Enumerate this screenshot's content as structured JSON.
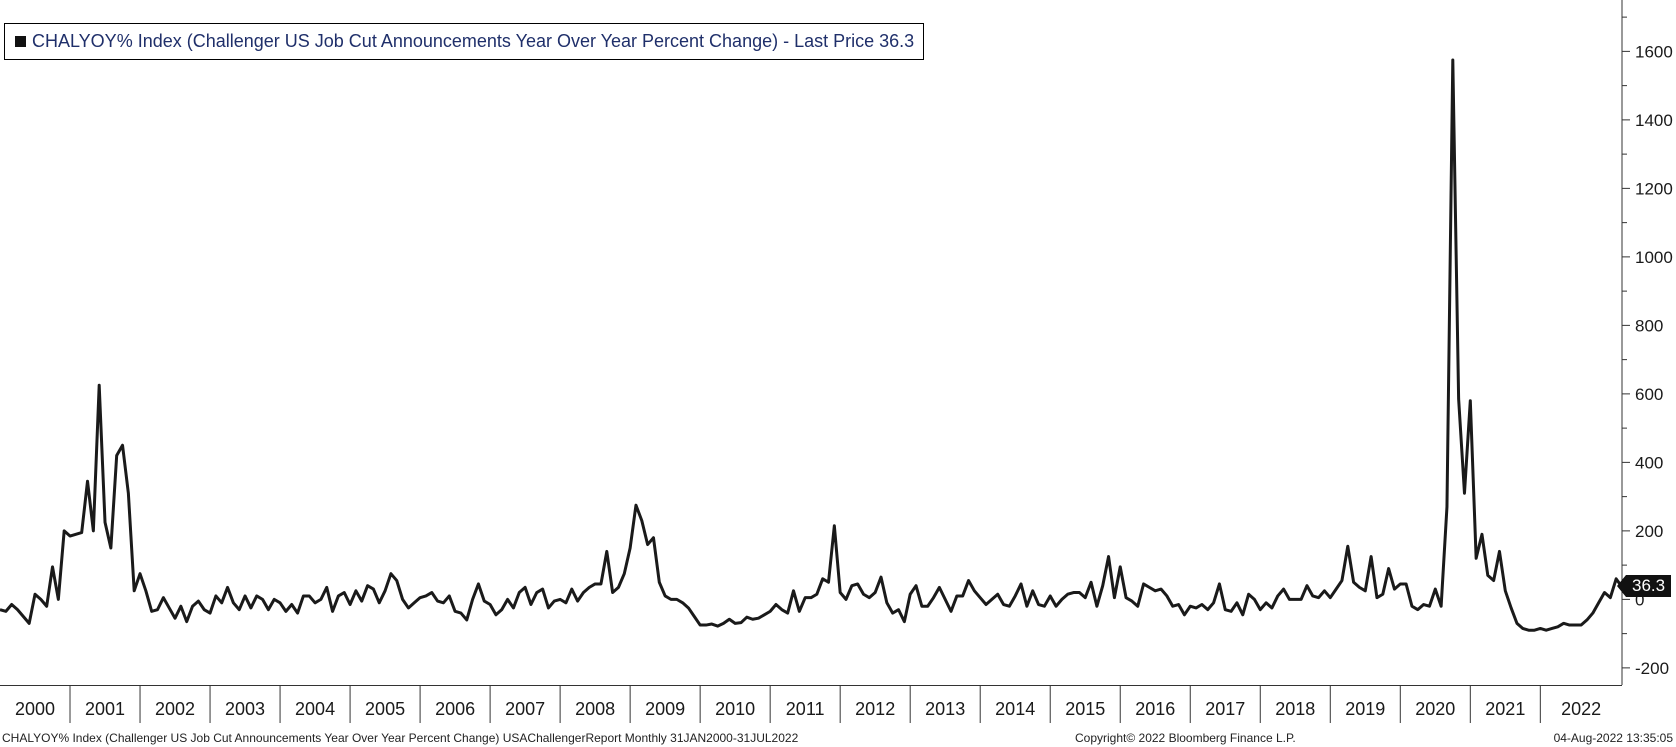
{
  "chart_data": {
    "type": "line",
    "title": "CHALYOY% Index (Challenger US Job Cut Announcements Year Over Year Percent Change) - Last Price 36.3",
    "series": [
      {
        "name": "CHALYOY% Index (Challenger US Job Cut Announcements Year Over Year Percent Change) - Last Price 36.3",
        "color": "#1a1a1a",
        "start": "2000-01",
        "frequency": "monthly",
        "values": [
          -30,
          -35,
          -15,
          -30,
          -50,
          -70,
          15,
          0,
          -20,
          95,
          0,
          200,
          185,
          190,
          195,
          345,
          200,
          625,
          225,
          150,
          420,
          450,
          310,
          25,
          75,
          25,
          -35,
          -30,
          5,
          -25,
          -55,
          -20,
          -65,
          -20,
          -5,
          -30,
          -40,
          10,
          -10,
          35,
          -10,
          -30,
          10,
          -25,
          10,
          0,
          -30,
          0,
          -10,
          -35,
          -15,
          -40,
          10,
          10,
          -10,
          0,
          35,
          -35,
          10,
          20,
          -15,
          25,
          -5,
          40,
          30,
          -10,
          25,
          75,
          55,
          0,
          -25,
          -10,
          5,
          10,
          20,
          -5,
          -10,
          10,
          -35,
          -40,
          -60,
          0,
          45,
          -5,
          -15,
          -45,
          -30,
          0,
          -25,
          20,
          35,
          -15,
          20,
          30,
          -25,
          -5,
          0,
          -10,
          30,
          -5,
          20,
          35,
          45,
          45,
          140,
          20,
          35,
          75,
          150,
          275,
          230,
          160,
          180,
          50,
          10,
          0,
          0,
          -10,
          -25,
          -50,
          -75,
          -75,
          -72,
          -78,
          -70,
          -58,
          -70,
          -68,
          -52,
          -58,
          -55,
          -45,
          -35,
          -15,
          -30,
          -40,
          25,
          -35,
          5,
          5,
          15,
          60,
          50,
          215,
          20,
          0,
          40,
          45,
          15,
          5,
          20,
          65,
          -10,
          -40,
          -30,
          -65,
          15,
          40,
          -20,
          -20,
          5,
          35,
          0,
          -35,
          10,
          10,
          55,
          25,
          5,
          -15,
          0,
          15,
          -15,
          -20,
          10,
          45,
          -20,
          25,
          -15,
          -20,
          10,
          -20,
          0,
          15,
          20,
          20,
          5,
          50,
          -20,
          40,
          125,
          5,
          95,
          5,
          -5,
          -20,
          45,
          35,
          25,
          30,
          10,
          -20,
          -15,
          -45,
          -20,
          -25,
          -15,
          -30,
          -10,
          45,
          -30,
          -35,
          -10,
          -45,
          15,
          0,
          -30,
          -10,
          -25,
          10,
          30,
          0,
          0,
          0,
          40,
          10,
          5,
          25,
          5,
          30,
          55,
          155,
          50,
          35,
          25,
          125,
          5,
          15,
          90,
          30,
          45,
          45,
          -20,
          -30,
          -15,
          -20,
          30,
          -20,
          270,
          1575,
          585,
          310,
          580,
          120,
          190,
          70,
          55,
          140,
          25,
          -25,
          -70,
          -85,
          -90,
          -90,
          -85,
          -90,
          -85,
          -80,
          -70,
          -75,
          -75,
          -75,
          -60,
          -40,
          -10,
          20,
          5,
          60,
          36.3
        ]
      }
    ],
    "x_tick_labels": [
      "2000",
      "2001",
      "2002",
      "2003",
      "2004",
      "2005",
      "2006",
      "2007",
      "2008",
      "2009",
      "2010",
      "2011",
      "2012",
      "2013",
      "2014",
      "2015",
      "2016",
      "2017",
      "2018",
      "2019",
      "2020",
      "2021",
      "2022"
    ],
    "y_tick_labels": [
      "1600",
      "1400",
      "1200",
      "1000",
      "800",
      "600",
      "400",
      "200",
      "0",
      "-200"
    ],
    "y_ticks": [
      1600,
      1400,
      1200,
      1000,
      800,
      600,
      400,
      200,
      0,
      -200
    ],
    "ylim": [
      -250,
      1750
    ],
    "xlim": [
      "2000-01",
      "2022-07"
    ],
    "y_axis_side": "right",
    "grid": false,
    "legend_position": "top-left",
    "last_value_label": "36.3",
    "xlabel": "",
    "ylabel": ""
  },
  "footer": {
    "source": "CHALYOY% Index (Challenger US Job Cut Announcements Year Over Year Percent Change) USAChallengerReport  Monthly 31JAN2000-31JUL2022",
    "copyright": "Copyright© 2022 Bloomberg Finance L.P.",
    "timestamp": "04-Aug-2022 13:35:05"
  }
}
